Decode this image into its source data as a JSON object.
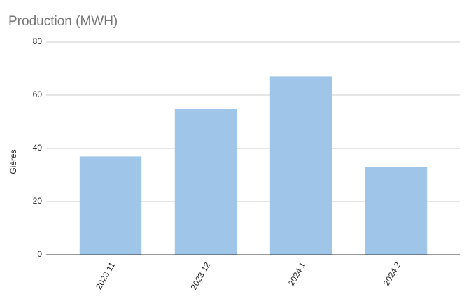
{
  "chart_data": {
    "type": "bar",
    "title": "Production (MWH)",
    "y_label": "Gières",
    "categories": [
      "2023 11",
      "2023 12",
      "2024 1",
      "2024 2"
    ],
    "values": [
      37,
      55,
      67,
      33
    ],
    "color": "#9fc5e8",
    "ylim": [
      0,
      80
    ],
    "yticks": [
      0,
      20,
      40,
      60,
      80
    ],
    "grid": true
  }
}
